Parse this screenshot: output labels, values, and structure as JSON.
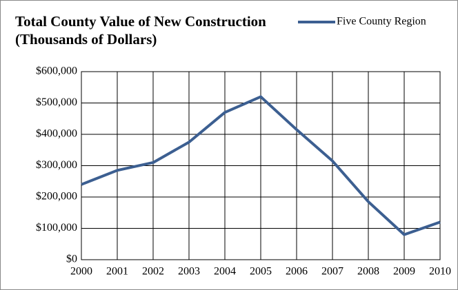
{
  "chart_data": {
    "type": "line",
    "title": "Total County Value of New Construction (Thousands of Dollars)",
    "x": [
      2000,
      2001,
      2002,
      2003,
      2004,
      2005,
      2006,
      2007,
      2008,
      2009,
      2010
    ],
    "series": [
      {
        "name": "Five County Region",
        "color": "#3c5f91",
        "values": [
          240000,
          285000,
          310000,
          375000,
          470000,
          520000,
          415000,
          315000,
          185000,
          80000,
          120000
        ]
      }
    ],
    "xlim": [
      2000,
      2010
    ],
    "xticks": [
      2000,
      2001,
      2002,
      2003,
      2004,
      2005,
      2006,
      2007,
      2008,
      2009,
      2010
    ],
    "ylim": [
      0,
      600000
    ],
    "yticks": [
      {
        "value": 0,
        "label": "$0"
      },
      {
        "value": 100000,
        "label": "$100,000"
      },
      {
        "value": 200000,
        "label": "$200,000"
      },
      {
        "value": 300000,
        "label": "$300,000"
      },
      {
        "value": 400000,
        "label": "$400,000"
      },
      {
        "value": 500000,
        "label": "$500,000"
      },
      {
        "value": 600000,
        "label": "$600,000"
      }
    ],
    "grid": true,
    "legend": "top-right"
  }
}
